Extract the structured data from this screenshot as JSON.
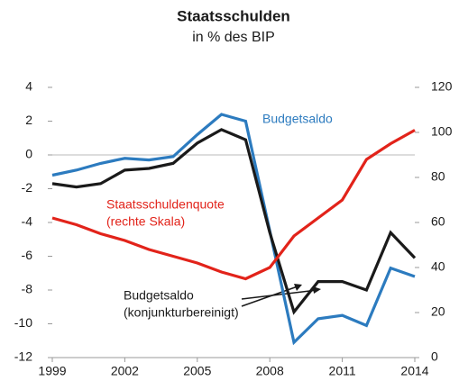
{
  "chart_data": {
    "type": "line",
    "title": "Staatsschulden",
    "subtitle": "in % des BIP",
    "x": [
      1999,
      2000,
      2001,
      2002,
      2003,
      2004,
      2005,
      2006,
      2007,
      2008,
      2009,
      2010,
      2011,
      2012,
      2013,
      2014
    ],
    "xlim": [
      1999,
      2014
    ],
    "xticks": [
      1999,
      2002,
      2005,
      2008,
      2011,
      2014
    ],
    "ylim": [
      -12,
      4
    ],
    "yticks": [
      -12,
      -10,
      -8,
      -6,
      -4,
      -2,
      0,
      2,
      4
    ],
    "y2lim": [
      0,
      120
    ],
    "y2ticks": [
      0,
      20,
      40,
      60,
      80,
      100,
      120
    ],
    "series": [
      {
        "name": "Budgetsaldo",
        "color": "#2c7bbf",
        "values": [
          -1.2,
          -0.9,
          -0.5,
          -0.2,
          -0.3,
          -0.1,
          1.2,
          2.4,
          2.0,
          -4.5,
          -11.1,
          -9.7,
          -9.5,
          -10.1,
          -6.7,
          -7.2
        ]
      },
      {
        "name": "Budgetsaldo",
        "note": "(konjunkturbereinigt)",
        "color": "#1a1a1a",
        "values": [
          -1.7,
          -1.9,
          -1.7,
          -0.9,
          -0.8,
          -0.5,
          0.7,
          1.5,
          0.9,
          -4.6,
          -9.3,
          -7.5,
          -7.5,
          -8.0,
          -4.6,
          -6.1
        ]
      },
      {
        "name": "Staatsschuldenquote",
        "note": "(rechte Skala)",
        "color": "#e2231a",
        "axis": "y2",
        "values": [
          62,
          59,
          55,
          52,
          48,
          45,
          42,
          38,
          35,
          40,
          54,
          62,
          70,
          88,
          95,
          101
        ]
      }
    ]
  }
}
